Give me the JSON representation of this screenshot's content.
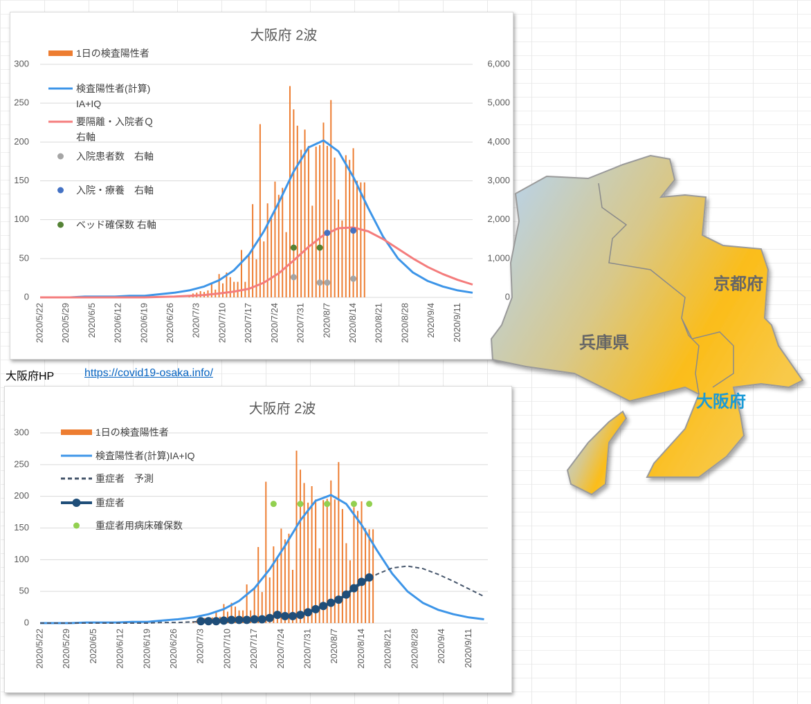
{
  "chart_data": [
    {
      "type": "combo",
      "title": "大阪府 2波",
      "xlim": [
        "2020/5/22",
        "2020/9/15"
      ],
      "xticks": [
        "2020/5/22",
        "2020/5/29",
        "2020/6/5",
        "2020/6/12",
        "2020/6/19",
        "2020/6/26",
        "2020/7/3",
        "2020/7/10",
        "2020/7/17",
        "2020/7/24",
        "2020/7/31",
        "2020/8/7",
        "2020/8/14",
        "2020/8/21",
        "2020/8/28",
        "2020/9/4",
        "2020/9/11"
      ],
      "ylim": [
        0,
        300
      ],
      "yticks": [
        0,
        50,
        100,
        150,
        200,
        250,
        300
      ],
      "y2lim": [
        0,
        6000
      ],
      "y2ticks": [
        0,
        {
          "value": 1000,
          "label": "1,000"
        },
        {
          "value": 2000,
          "label": "2,000"
        },
        {
          "value": 3000,
          "label": "3,000"
        },
        {
          "value": 4000,
          "label": "4,000"
        },
        {
          "value": 5000,
          "label": "5,000"
        },
        {
          "value": 6000,
          "label": "6,000"
        }
      ],
      "grid": true,
      "series": [
        {
          "name": "1日の検査陽性者",
          "type": "bar",
          "color": "#ed7d31",
          "x": [
            "2020/7/1",
            "2020/7/2",
            "2020/7/3",
            "2020/7/4",
            "2020/7/5",
            "2020/7/6",
            "2020/7/7",
            "2020/7/8",
            "2020/7/9",
            "2020/7/10",
            "2020/7/11",
            "2020/7/12",
            "2020/7/13",
            "2020/7/14",
            "2020/7/15",
            "2020/7/16",
            "2020/7/17",
            "2020/7/18",
            "2020/7/19",
            "2020/7/20",
            "2020/7/21",
            "2020/7/22",
            "2020/7/23",
            "2020/7/24",
            "2020/7/25",
            "2020/7/26",
            "2020/7/27",
            "2020/7/28",
            "2020/7/29",
            "2020/7/30",
            "2020/7/31",
            "2020/8/1",
            "2020/8/2",
            "2020/8/3",
            "2020/8/4",
            "2020/8/5",
            "2020/8/6",
            "2020/8/7",
            "2020/8/8",
            "2020/8/9",
            "2020/8/10",
            "2020/8/11",
            "2020/8/12",
            "2020/8/13",
            "2020/8/14",
            "2020/8/15",
            "2020/8/16",
            "2020/8/17"
          ],
          "values": [
            3,
            5,
            6,
            8,
            7,
            9,
            17,
            10,
            30,
            18,
            32,
            26,
            20,
            20,
            61,
            20,
            56,
            120,
            49,
            223,
            72,
            121,
            104,
            149,
            132,
            141,
            84,
            272,
            242,
            221,
            190,
            216,
            195,
            118,
            194,
            196,
            225,
            195,
            254,
            180,
            126,
            99,
            183,
            177,
            192,
            150,
            148,
            148
          ]
        },
        {
          "name": "検査陽性者(計算)\nIA+IQ",
          "type": "line",
          "color": "#3d95e8",
          "x": [
            "2020/5/22",
            "2020/5/26",
            "2020/5/30",
            "2020/6/3",
            "2020/6/7",
            "2020/6/11",
            "2020/6/15",
            "2020/6/19",
            "2020/6/23",
            "2020/6/27",
            "2020/7/1",
            "2020/7/5",
            "2020/7/9",
            "2020/7/13",
            "2020/7/17",
            "2020/7/21",
            "2020/7/25",
            "2020/7/29",
            "2020/8/2",
            "2020/8/6",
            "2020/8/10",
            "2020/8/14",
            "2020/8/18",
            "2020/8/22",
            "2020/8/26",
            "2020/8/30",
            "2020/9/3",
            "2020/9/7",
            "2020/9/11",
            "2020/9/15"
          ],
          "values": [
            0,
            0,
            0,
            1,
            1,
            1,
            2,
            2,
            4,
            6,
            9,
            14,
            22,
            35,
            55,
            85,
            122,
            162,
            193,
            202,
            188,
            155,
            115,
            78,
            50,
            32,
            21,
            14,
            9,
            6
          ]
        },
        {
          "name": "要隔離・入院者Ｑ\n右軸",
          "type": "line",
          "axis": "y2",
          "color": "#f47c7c",
          "x": [
            "2020/5/22",
            "2020/5/26",
            "2020/5/30",
            "2020/6/3",
            "2020/6/7",
            "2020/6/11",
            "2020/6/15",
            "2020/6/19",
            "2020/6/23",
            "2020/6/27",
            "2020/7/1",
            "2020/7/5",
            "2020/7/9",
            "2020/7/13",
            "2020/7/17",
            "2020/7/21",
            "2020/7/25",
            "2020/7/29",
            "2020/8/2",
            "2020/8/6",
            "2020/8/10",
            "2020/8/14",
            "2020/8/18",
            "2020/8/22",
            "2020/8/26",
            "2020/8/30",
            "2020/9/3",
            "2020/9/7",
            "2020/9/11",
            "2020/9/15"
          ],
          "values": [
            0,
            0,
            0,
            0,
            0,
            0,
            0,
            0,
            10,
            20,
            40,
            60,
            100,
            150,
            220,
            380,
            620,
            950,
            1300,
            1600,
            1780,
            1800,
            1700,
            1500,
            1250,
            1000,
            780,
            600,
            450,
            330
          ]
        },
        {
          "name": "入院患者数　右軸",
          "type": "scatter",
          "axis": "y2",
          "color": "#a5a5a5",
          "x": [
            "2020/7/29",
            "2020/8/5",
            "2020/8/7",
            "2020/8/14"
          ],
          "values": [
            520,
            380,
            380,
            480
          ]
        },
        {
          "name": "入院・療養　右軸",
          "type": "scatter",
          "axis": "y2",
          "color": "#4472c4",
          "x": [
            "2020/8/7",
            "2020/8/14"
          ],
          "values": [
            1660,
            1720
          ]
        },
        {
          "name": "ベッド確保数 右軸",
          "type": "scatter",
          "axis": "y2",
          "color": "#548235",
          "x": [
            "2020/7/29",
            "2020/8/5"
          ],
          "values": [
            1280,
            1280
          ]
        }
      ]
    },
    {
      "type": "combo",
      "title": "大阪府 2波",
      "xlim": [
        "2020/5/22",
        "2020/9/16"
      ],
      "xticks": [
        "2020/5/22",
        "2020/5/29",
        "2020/6/5",
        "2020/6/12",
        "2020/6/19",
        "2020/6/26",
        "2020/7/3",
        "2020/7/10",
        "2020/7/17",
        "2020/7/24",
        "2020/7/31",
        "2020/8/7",
        "2020/8/14",
        "2020/8/21",
        "2020/8/28",
        "2020/9/4",
        "2020/9/11"
      ],
      "ylim": [
        0,
        300
      ],
      "yticks": [
        0,
        50,
        100,
        150,
        200,
        250,
        300
      ],
      "grid": true,
      "series": [
        {
          "name": "1日の検査陽性者",
          "type": "bar",
          "color": "#ed7d31",
          "x": [
            "2020/7/1",
            "2020/7/2",
            "2020/7/3",
            "2020/7/4",
            "2020/7/5",
            "2020/7/6",
            "2020/7/7",
            "2020/7/8",
            "2020/7/9",
            "2020/7/10",
            "2020/7/11",
            "2020/7/12",
            "2020/7/13",
            "2020/7/14",
            "2020/7/15",
            "2020/7/16",
            "2020/7/17",
            "2020/7/18",
            "2020/7/19",
            "2020/7/20",
            "2020/7/21",
            "2020/7/22",
            "2020/7/23",
            "2020/7/24",
            "2020/7/25",
            "2020/7/26",
            "2020/7/27",
            "2020/7/28",
            "2020/7/29",
            "2020/7/30",
            "2020/7/31",
            "2020/8/1",
            "2020/8/2",
            "2020/8/3",
            "2020/8/4",
            "2020/8/5",
            "2020/8/6",
            "2020/8/7",
            "2020/8/8",
            "2020/8/9",
            "2020/8/10",
            "2020/8/11",
            "2020/8/12",
            "2020/8/13",
            "2020/8/14",
            "2020/8/15",
            "2020/8/16",
            "2020/8/17"
          ],
          "values": [
            3,
            5,
            6,
            8,
            7,
            9,
            17,
            10,
            30,
            18,
            32,
            26,
            20,
            20,
            61,
            20,
            56,
            120,
            49,
            223,
            72,
            121,
            104,
            149,
            132,
            141,
            84,
            272,
            242,
            221,
            190,
            216,
            195,
            118,
            194,
            196,
            225,
            195,
            254,
            180,
            126,
            99,
            183,
            177,
            192,
            150,
            148,
            148
          ]
        },
        {
          "name": "検査陽性者(計算)IA+IQ",
          "type": "line",
          "color": "#3d95e8",
          "x": [
            "2020/5/22",
            "2020/5/26",
            "2020/5/30",
            "2020/6/3",
            "2020/6/7",
            "2020/6/11",
            "2020/6/15",
            "2020/6/19",
            "2020/6/23",
            "2020/6/27",
            "2020/7/1",
            "2020/7/5",
            "2020/7/9",
            "2020/7/13",
            "2020/7/17",
            "2020/7/21",
            "2020/7/25",
            "2020/7/29",
            "2020/8/2",
            "2020/8/6",
            "2020/8/10",
            "2020/8/14",
            "2020/8/18",
            "2020/8/22",
            "2020/8/26",
            "2020/8/30",
            "2020/9/3",
            "2020/9/7",
            "2020/9/11",
            "2020/9/15"
          ],
          "values": [
            0,
            0,
            0,
            1,
            1,
            1,
            2,
            2,
            4,
            6,
            9,
            14,
            22,
            35,
            55,
            85,
            122,
            162,
            193,
            202,
            188,
            155,
            115,
            78,
            50,
            32,
            21,
            14,
            9,
            6
          ]
        },
        {
          "name": "重症者　予測",
          "type": "line",
          "dash": true,
          "color": "#44546a",
          "x": [
            "2020/5/22",
            "2020/5/26",
            "2020/5/30",
            "2020/6/3",
            "2020/6/7",
            "2020/6/11",
            "2020/6/15",
            "2020/6/19",
            "2020/6/23",
            "2020/6/27",
            "2020/7/1",
            "2020/7/5",
            "2020/7/9",
            "2020/7/13",
            "2020/7/17",
            "2020/7/21",
            "2020/7/25",
            "2020/7/29",
            "2020/8/2",
            "2020/8/6",
            "2020/8/10",
            "2020/8/14",
            "2020/8/18",
            "2020/8/22",
            "2020/8/26",
            "2020/8/30",
            "2020/9/3",
            "2020/9/7",
            "2020/9/11",
            "2020/9/15"
          ],
          "values": [
            0,
            0,
            0,
            0,
            0,
            0,
            0,
            0,
            1,
            1,
            2,
            3,
            4,
            5,
            6,
            8,
            11,
            14,
            20,
            30,
            45,
            62,
            77,
            87,
            90,
            86,
            77,
            66,
            54,
            42
          ]
        },
        {
          "name": "重症者",
          "type": "line",
          "marker": true,
          "color": "#1f4e79",
          "x": [
            "2020/7/3",
            "2020/7/5",
            "2020/7/7",
            "2020/7/9",
            "2020/7/11",
            "2020/7/13",
            "2020/7/15",
            "2020/7/17",
            "2020/7/19",
            "2020/7/21",
            "2020/7/23",
            "2020/7/25",
            "2020/7/27",
            "2020/7/29",
            "2020/7/31",
            "2020/8/2",
            "2020/8/4",
            "2020/8/6",
            "2020/8/8",
            "2020/8/10",
            "2020/8/12",
            "2020/8/14",
            "2020/8/16"
          ],
          "values": [
            3,
            3,
            3,
            4,
            5,
            5,
            5,
            6,
            6,
            8,
            13,
            11,
            11,
            13,
            17,
            22,
            27,
            32,
            37,
            45,
            55,
            65,
            72
          ]
        },
        {
          "name": "重症者用病床確保数",
          "type": "scatter",
          "color": "#92d050",
          "x": [
            "2020/7/22",
            "2020/7/29",
            "2020/8/5",
            "2020/8/12",
            "2020/8/16"
          ],
          "values": [
            188,
            188,
            188,
            188,
            188
          ]
        }
      ]
    }
  ],
  "link_label": "大阪府HP",
  "link_url": "https://covid19-osaka.info/",
  "map_labels": [
    "京都府",
    "兵庫県",
    "大阪府"
  ]
}
